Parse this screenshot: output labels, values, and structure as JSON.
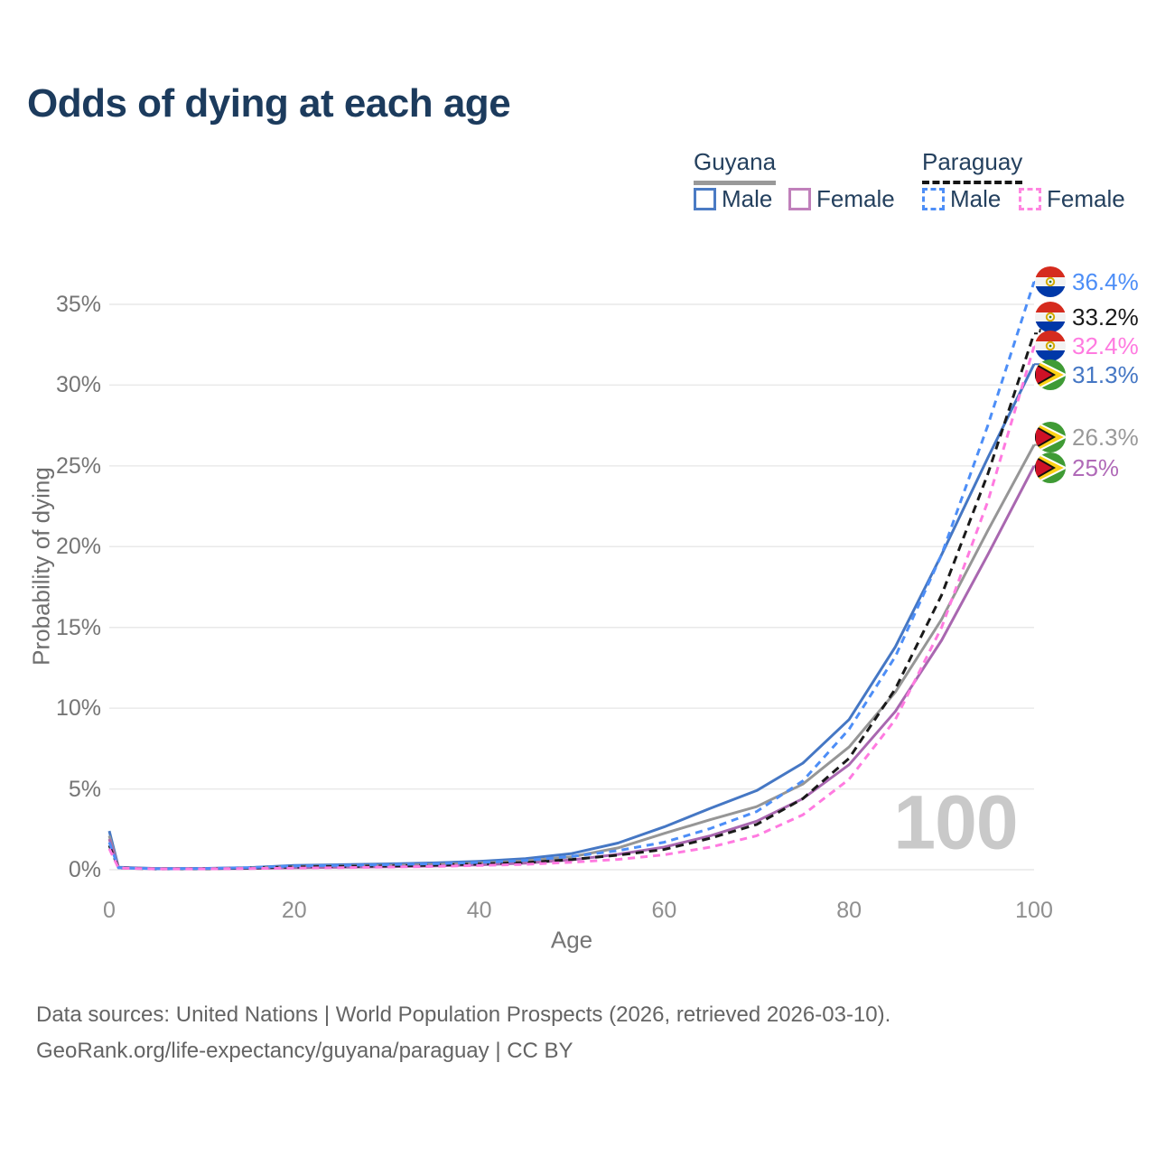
{
  "title": "Odds of dying at each age",
  "legend": {
    "groups": [
      {
        "label": "Guyana",
        "line_style": "solid",
        "line_color": "#999999",
        "items": [
          {
            "label": "Male",
            "color": "#4b7bc4",
            "dashed": false
          },
          {
            "label": "Female",
            "color": "#c080bb",
            "dashed": false
          }
        ]
      },
      {
        "label": "Paraguay",
        "line_style": "dashed",
        "line_color": "#161616",
        "items": [
          {
            "label": "Male",
            "color": "#4d8ef7",
            "dashed": true
          },
          {
            "label": "Female",
            "color": "#ff85e0",
            "dashed": true
          }
        ]
      }
    ]
  },
  "chart_data": {
    "type": "line",
    "title": "Odds of dying at each age",
    "xlabel": "Age",
    "ylabel": "Probability of dying",
    "xlim": [
      0,
      100
    ],
    "ylim": [
      0,
      35
    ],
    "grid": "horizontal",
    "legend_position": "top-right",
    "age_indicator": "100",
    "x_ticks": [
      "0",
      "20",
      "40",
      "60",
      "80",
      "100"
    ],
    "y_ticks": [
      "0%",
      "5%",
      "10%",
      "15%",
      "20%",
      "25%",
      "30%",
      "35%"
    ],
    "y_tick_values": [
      0,
      5,
      10,
      15,
      20,
      25,
      30,
      35
    ],
    "x_tick_values": [
      0,
      20,
      40,
      60,
      80,
      100
    ],
    "ages": [
      0,
      1,
      5,
      10,
      15,
      20,
      25,
      30,
      35,
      40,
      45,
      50,
      55,
      60,
      65,
      70,
      75,
      80,
      85,
      90,
      95,
      100
    ],
    "series": [
      {
        "key": "guyana-male",
        "name": "Guyana Male",
        "color": "#4577c4",
        "dash": null,
        "values": [
          2.4,
          0.15,
          0.08,
          0.08,
          0.13,
          0.26,
          0.31,
          0.36,
          0.42,
          0.52,
          0.68,
          1.0,
          1.65,
          2.65,
          3.8,
          4.9,
          6.6,
          9.3,
          13.8,
          19.5,
          25.5,
          31.3
        ]
      },
      {
        "key": "guyana-all",
        "name": "Guyana",
        "color": "#969696",
        "dash": null,
        "values": [
          2.1,
          0.13,
          0.07,
          0.07,
          0.1,
          0.19,
          0.23,
          0.27,
          0.32,
          0.41,
          0.54,
          0.8,
          1.35,
          2.25,
          3.1,
          3.9,
          5.3,
          7.6,
          11.0,
          15.5,
          21.0,
          26.3
        ]
      },
      {
        "key": "guyana-female",
        "name": "Guyana Female",
        "color": "#a967b0",
        "dash": null,
        "values": [
          1.9,
          0.12,
          0.06,
          0.06,
          0.08,
          0.12,
          0.15,
          0.18,
          0.23,
          0.3,
          0.41,
          0.61,
          0.95,
          1.4,
          2.1,
          3.0,
          4.4,
          6.5,
          9.8,
          14.2,
          19.5,
          25.0
        ]
      },
      {
        "key": "paraguay-all",
        "name": "Paraguay",
        "color": "#1a1a1a",
        "dash": [
          9,
          6
        ],
        "values": [
          1.5,
          0.11,
          0.05,
          0.06,
          0.1,
          0.17,
          0.2,
          0.23,
          0.28,
          0.35,
          0.44,
          0.63,
          0.9,
          1.25,
          1.95,
          2.8,
          4.4,
          6.9,
          11.2,
          17.0,
          24.5,
          33.2
        ]
      },
      {
        "key": "paraguay-male",
        "name": "Paraguay Male",
        "color": "#4d8ef7",
        "dash": [
          8,
          6
        ],
        "values": [
          1.7,
          0.12,
          0.06,
          0.07,
          0.13,
          0.23,
          0.27,
          0.31,
          0.37,
          0.45,
          0.57,
          0.82,
          1.18,
          1.7,
          2.55,
          3.6,
          5.5,
          8.7,
          13.2,
          19.5,
          27.5,
          36.4
        ]
      },
      {
        "key": "paraguay-female",
        "name": "Paraguay Female",
        "color": "#ff7ae0",
        "dash": [
          8,
          6
        ],
        "values": [
          1.3,
          0.1,
          0.05,
          0.05,
          0.07,
          0.1,
          0.13,
          0.16,
          0.2,
          0.26,
          0.33,
          0.46,
          0.64,
          0.92,
          1.4,
          2.1,
          3.4,
          5.6,
          9.3,
          15.0,
          22.8,
          32.4
        ]
      }
    ],
    "end_labels": [
      {
        "value": "36.4%",
        "color": "#4d8ef7",
        "flag": "paraguay",
        "series": "paraguay-male"
      },
      {
        "value": "33.2%",
        "color": "#1a1a1a",
        "flag": "paraguay",
        "series": "paraguay-all"
      },
      {
        "value": "32.4%",
        "color": "#ff7ae0",
        "flag": "paraguay",
        "series": "paraguay-female"
      },
      {
        "value": "31.3%",
        "color": "#4577c4",
        "flag": "guyana",
        "series": "guyana-male"
      },
      {
        "value": "26.3%",
        "color": "#999999",
        "flag": "guyana",
        "series": "guyana-all"
      },
      {
        "value": "25%",
        "color": "#b06ab8",
        "flag": "guyana",
        "series": "guyana-female"
      }
    ]
  },
  "footer": {
    "line1": "Data sources: United Nations | World Population Prospects (2026, retrieved 2026-03-10).",
    "line2": "GeoRank.org/life-expectancy/guyana/paraguay | CC BY"
  }
}
